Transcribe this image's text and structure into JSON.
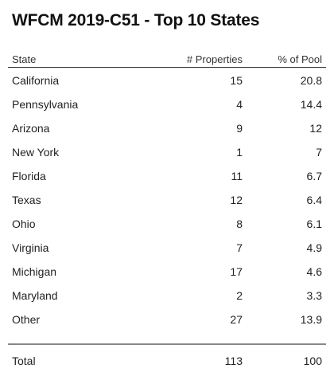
{
  "title": "WFCM 2019-C51 - Top 10 States",
  "table": {
    "headers": {
      "state": "State",
      "properties": "# Properties",
      "pool": "% of Pool"
    },
    "rows": [
      {
        "state": "California",
        "properties": "15",
        "pool": "20.8"
      },
      {
        "state": "Pennsylvania",
        "properties": "4",
        "pool": "14.4"
      },
      {
        "state": "Arizona",
        "properties": "9",
        "pool": "12"
      },
      {
        "state": "New York",
        "properties": "1",
        "pool": "7"
      },
      {
        "state": "Florida",
        "properties": "11",
        "pool": "6.7"
      },
      {
        "state": "Texas",
        "properties": "12",
        "pool": "6.4"
      },
      {
        "state": "Ohio",
        "properties": "8",
        "pool": "6.1"
      },
      {
        "state": "Virginia",
        "properties": "7",
        "pool": "4.9"
      },
      {
        "state": "Michigan",
        "properties": "17",
        "pool": "4.6"
      },
      {
        "state": "Maryland",
        "properties": "2",
        "pool": "3.3"
      },
      {
        "state": "Other",
        "properties": "27",
        "pool": "13.9"
      }
    ],
    "total": {
      "state": "Total",
      "properties": "113",
      "pool": "100"
    }
  }
}
